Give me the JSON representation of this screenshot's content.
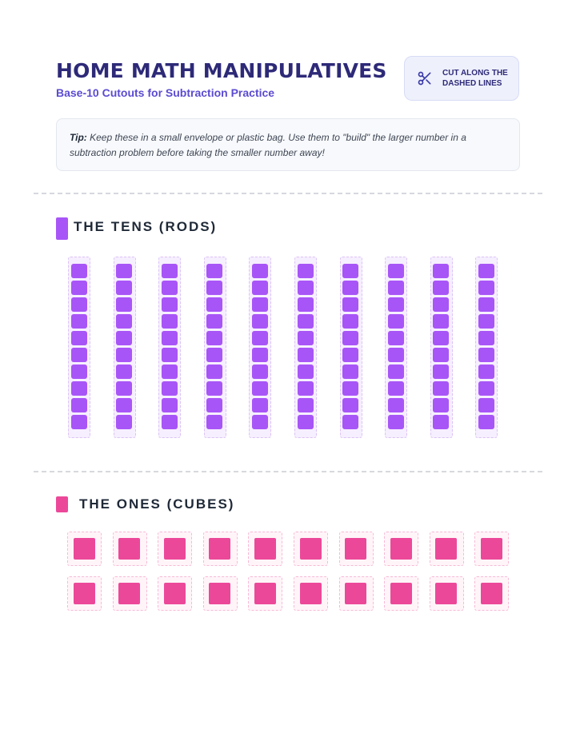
{
  "header": {
    "title": "HOME MATH MANIPULATIVES",
    "subtitle": "Base-10 Cutouts for Subtraction Practice",
    "cut_note": "CUT ALONG THE DASHED LINES",
    "cut_icon": "scissors-icon"
  },
  "tip": {
    "label": "Tip:",
    "text": " Keep these in a small envelope or plastic bag. Use them to \"build\" the larger number in a subtraction problem before taking the smaller number away!"
  },
  "sections": {
    "tens": {
      "label": "THE TENS (RODS)",
      "color": "#a855f7",
      "rod_count": 10,
      "units_per_rod": 10
    },
    "ones": {
      "label": "THE ONES (CUBES)",
      "color": "#ec4899",
      "cube_count": 20
    }
  },
  "colors": {
    "title": "#2e2a78",
    "accent": "#5b4bd1",
    "rod": "#a855f7",
    "cube": "#ec4899"
  }
}
